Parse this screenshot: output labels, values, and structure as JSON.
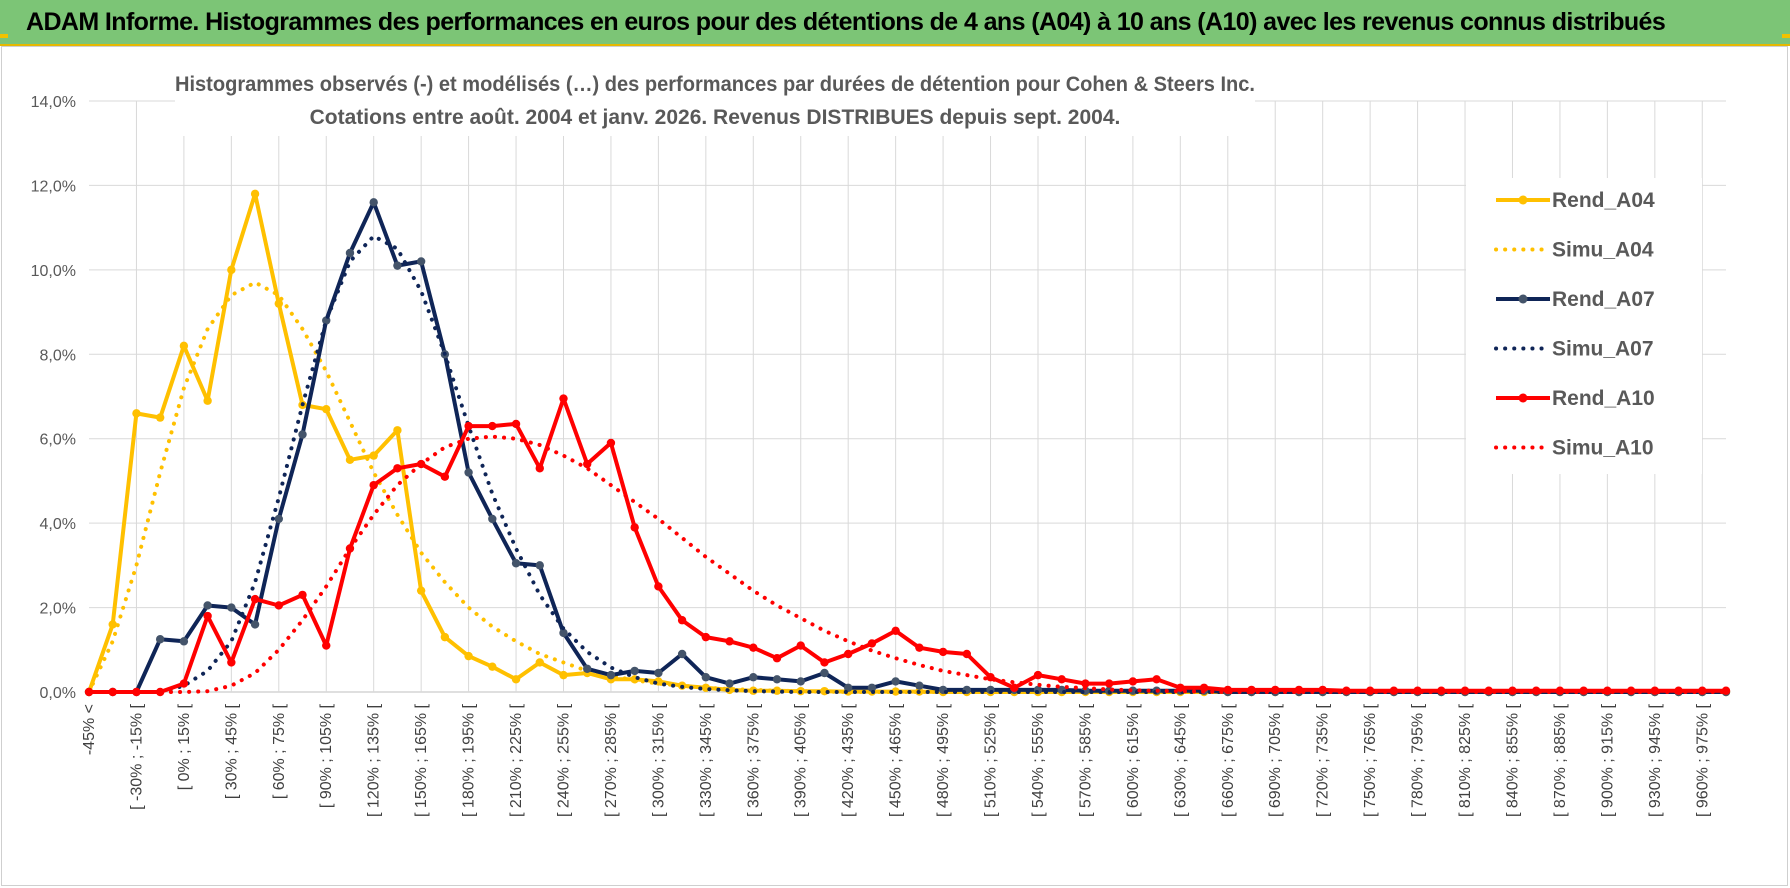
{
  "header": {
    "title": "ADAM Informe. Histogrammes des performances en euros pour des détentions de 4 ans (A04) à 10 ans (A10) avec les revenus connus distribués"
  },
  "colors": {
    "banner": "#7cc576",
    "A04": "#ffc000",
    "A07": "#0f2557",
    "A10": "#ff0000",
    "grid": "#d9d9d9"
  },
  "chart_data": {
    "type": "line",
    "title": "Histogrammes observés (-) et modélisés (…) des performances par durées de détention pour Cohen & Steers Inc.",
    "subtitle": "Cotations entre août. 2004 et janv. 2026. Revenus DISTRIBUES depuis sept. 2004.",
    "ylim": [
      0,
      14
    ],
    "ytick_labels": [
      "0,0%",
      "2,0%",
      "4,0%",
      "6,0%",
      "8,0%",
      "10,0%",
      "12,0%",
      "14,0%"
    ],
    "x_labels": [
      "-45% <",
      "[ -30% ; -15% [",
      "[ 0% ; 15% [",
      "[ 30% ; 45% [",
      "[ 60% ; 75% [",
      "[ 90% ; 105% [",
      "[ 120% ; 135% [",
      "[ 150% ; 165% [",
      "[ 180% ; 195% [",
      "[ 210% ; 225% [",
      "[ 240% ; 255% [",
      "[ 270% ; 285% [",
      "[ 300% ; 315% [",
      "[ 330% ; 345% [",
      "[ 360% ; 375% [",
      "[ 390% ; 405% [",
      "[ 420% ; 435% [",
      "[ 450% ; 465% [",
      "[ 480% ; 495% [",
      "[ 510% ; 525% [",
      "[ 540% ; 555% [",
      "[ 570% ; 585% [",
      "[ 600% ; 615% [",
      "[ 630% ; 645% [",
      "[ 660% ; 675% [",
      "[ 690% ; 705% [",
      "[ 720% ; 735% [",
      "[ 750% ; 765% [",
      "[ 780% ; 795% [",
      "[ 810% ; 825% [",
      "[ 840% ; 855% [",
      "[ 870% ; 885% [",
      "[ 900% ; 915% [",
      "[ 930% ; 945% [",
      "[ 960% ; 975% ["
    ],
    "n_points": 70,
    "legend_position": "right",
    "series": [
      {
        "name": "Rend_A04",
        "color": "#ffc000",
        "style": "solid",
        "markers": true,
        "start": 0,
        "values": [
          0.0,
          1.6,
          6.6,
          6.5,
          8.2,
          6.9,
          10.0,
          11.8,
          9.2,
          6.8,
          6.7,
          5.5,
          5.6,
          6.2,
          2.4,
          1.3,
          0.85,
          0.6,
          0.3,
          0.7,
          0.4,
          0.45,
          0.3,
          0.3,
          0.25,
          0.15,
          0.1,
          0.05,
          0.03,
          0.03,
          0.02,
          0.02,
          0.01,
          0.01,
          0.01,
          0.01,
          0.0,
          0.0
        ]
      },
      {
        "name": "Simu_A04",
        "color": "#ffc000",
        "style": "dotted",
        "markers": false,
        "start": 0,
        "values": [
          0.0,
          1.2,
          3.0,
          5.2,
          7.2,
          8.6,
          9.4,
          9.7,
          9.4,
          8.6,
          7.6,
          6.4,
          5.2,
          4.2,
          3.3,
          2.6,
          2.0,
          1.55,
          1.2,
          0.9,
          0.7,
          0.5,
          0.38,
          0.28,
          0.2,
          0.15,
          0.1,
          0.07,
          0.05,
          0.03,
          0.02,
          0.01,
          0.0,
          0.0,
          0.0,
          0.0,
          0.0,
          0.0
        ]
      },
      {
        "name": "Rend_A07",
        "color": "#0f2557",
        "style": "solid",
        "markers": true,
        "start": 0,
        "values": [
          0.0,
          0.0,
          0.0,
          1.25,
          1.2,
          2.05,
          2.0,
          1.6,
          4.1,
          6.1,
          8.8,
          10.4,
          11.6,
          10.1,
          10.2,
          8.0,
          5.2,
          4.1,
          3.05,
          3.0,
          1.4,
          0.55,
          0.4,
          0.5,
          0.45,
          0.9,
          0.35,
          0.2,
          0.35,
          0.3,
          0.25,
          0.45,
          0.1,
          0.1,
          0.25,
          0.15,
          0.05,
          0.05,
          0.05,
          0.05,
          0.05,
          0.05,
          0.03,
          0.03,
          0.03,
          0.03,
          0.03,
          0.03
        ]
      },
      {
        "name": "Simu_A07",
        "color": "#0f2557",
        "style": "dotted",
        "markers": false,
        "start": 0,
        "values": [
          0.0,
          0.0,
          0.0,
          0.0,
          0.15,
          0.5,
          1.2,
          2.6,
          4.6,
          6.8,
          8.8,
          10.2,
          10.8,
          10.5,
          9.5,
          8.0,
          6.3,
          4.7,
          3.4,
          2.3,
          1.5,
          0.95,
          0.58,
          0.35,
          0.2,
          0.12,
          0.07,
          0.04,
          0.02,
          0.01,
          0.0,
          0.0,
          0.0,
          0.0,
          0.0,
          0.0,
          0.0,
          0.0
        ]
      },
      {
        "name": "Rend_A10",
        "color": "#ff0000",
        "style": "solid",
        "markers": true,
        "start": 0,
        "values": [
          0.0,
          0.0,
          0.0,
          0.0,
          0.2,
          1.8,
          0.7,
          2.2,
          2.05,
          2.3,
          1.1,
          3.4,
          4.9,
          5.3,
          5.4,
          5.1,
          6.3,
          6.3,
          6.35,
          5.3,
          6.95,
          5.4,
          5.9,
          3.9,
          2.5,
          1.7,
          1.3,
          1.2,
          1.05,
          0.8,
          1.1,
          0.7,
          0.9,
          1.15,
          1.45,
          1.05,
          0.95,
          0.9,
          0.35,
          0.1,
          0.4,
          0.3,
          0.2,
          0.2,
          0.25,
          0.3,
          0.1,
          0.1,
          0.05,
          0.05,
          0.05,
          0.05,
          0.05,
          0.03,
          0.03,
          0.03,
          0.03,
          0.03,
          0.03,
          0.03,
          0.03,
          0.03,
          0.03,
          0.03,
          0.03,
          0.03,
          0.03,
          0.03,
          0.03,
          0.03
        ]
      },
      {
        "name": "Simu_A10",
        "color": "#ff0000",
        "style": "dotted",
        "markers": false,
        "start": 0,
        "values": [
          0.0,
          0.0,
          0.0,
          0.0,
          0.0,
          0.02,
          0.15,
          0.45,
          1.0,
          1.7,
          2.5,
          3.4,
          4.2,
          4.9,
          5.4,
          5.8,
          6.0,
          6.05,
          6.0,
          5.85,
          5.6,
          5.3,
          4.9,
          4.5,
          4.1,
          3.65,
          3.2,
          2.8,
          2.4,
          2.05,
          1.75,
          1.45,
          1.2,
          0.98,
          0.8,
          0.64,
          0.5,
          0.4,
          0.3,
          0.23,
          0.17,
          0.12,
          0.09,
          0.06,
          0.04,
          0.03,
          0.02,
          0.01,
          0.0,
          0.0
        ]
      }
    ]
  }
}
